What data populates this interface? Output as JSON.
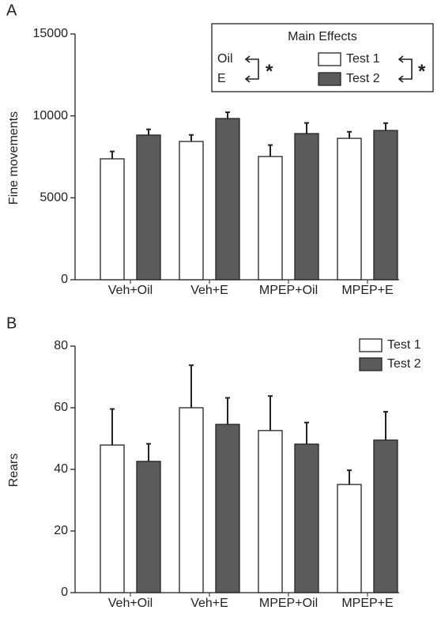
{
  "chart_data": [
    {
      "type": "bar",
      "panel_label": "A",
      "ylabel": "Fine movements",
      "categories": [
        "Veh+Oil",
        "Veh+E",
        "MPEP+Oil",
        "MPEP+E"
      ],
      "series": [
        {
          "name": "Test 1",
          "color": "#ffffff",
          "values": [
            7380,
            8440,
            7520,
            8630
          ],
          "errors": [
            450,
            400,
            700,
            400
          ]
        },
        {
          "name": "Test 2",
          "color": "#5b5b5b",
          "values": [
            8830,
            9840,
            8920,
            9110
          ],
          "errors": [
            350,
            380,
            650,
            450
          ]
        }
      ],
      "ylim": [
        0,
        15000
      ],
      "yticks": [
        0,
        5000,
        10000,
        15000
      ],
      "legend_title": "Main Effects",
      "factor_labels": [
        "Oil",
        "E"
      ],
      "significance": "*"
    },
    {
      "type": "bar",
      "panel_label": "B",
      "ylabel": "Rears",
      "categories": [
        "Veh+Oil",
        "Veh+E",
        "MPEP+Oil",
        "MPEP+E"
      ],
      "series": [
        {
          "name": "Test 1",
          "color": "#ffffff",
          "values": [
            47.9,
            60,
            52.6,
            35.1
          ],
          "errors": [
            11.7,
            13.8,
            11.2,
            4.6
          ]
        },
        {
          "name": "Test 2",
          "color": "#5b5b5b",
          "values": [
            42.6,
            54.6,
            48.2,
            49.5
          ],
          "errors": [
            5.7,
            8.6,
            7,
            9.2
          ]
        }
      ],
      "ylim": [
        0,
        80
      ],
      "yticks": [
        0,
        20,
        40,
        60,
        80
      ]
    }
  ]
}
